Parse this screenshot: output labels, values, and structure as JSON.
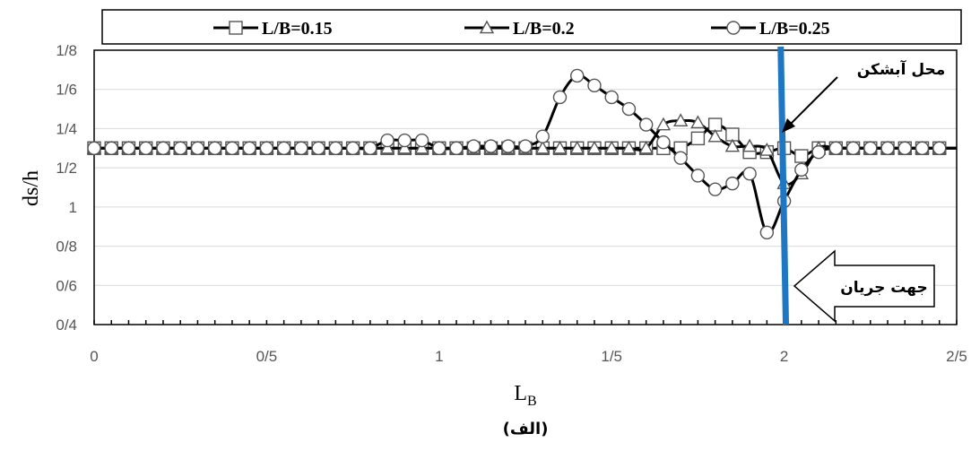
{
  "chart_data": {
    "type": "line",
    "x_tick_labels": [
      "0",
      "0/5",
      "1",
      "1/5",
      "2",
      "2/5"
    ],
    "x_tick_values": [
      0,
      0.5,
      1,
      1.5,
      2,
      2.5
    ],
    "y_tick_labels": [
      "0/4",
      "0/6",
      "0/8",
      "1",
      "1/2",
      "1/4",
      "1/6",
      "1/8"
    ],
    "y_tick_values": [
      0.4,
      0.6,
      0.8,
      1.0,
      1.2,
      1.4,
      1.6,
      1.8
    ],
    "xlim": [
      0,
      2.5
    ],
    "ylim": [
      0.4,
      1.8
    ],
    "xlabel_main": "L",
    "xlabel_sub": "B",
    "ylabel": "ds/h",
    "caption": "(الف)",
    "grid": "horizontal",
    "legend_position": "top",
    "series": [
      {
        "name": "L/B=0.15",
        "marker": "square",
        "x": [
          0,
          0.05,
          0.1,
          0.15,
          0.2,
          0.25,
          0.3,
          0.35,
          0.4,
          0.45,
          0.5,
          0.55,
          0.6,
          0.65,
          0.7,
          0.75,
          0.8,
          0.85,
          0.9,
          0.95,
          1.0,
          1.05,
          1.1,
          1.15,
          1.2,
          1.25,
          1.3,
          1.35,
          1.4,
          1.45,
          1.5,
          1.55,
          1.6,
          1.65,
          1.7,
          1.75,
          1.8,
          1.85,
          1.9,
          1.95,
          2.0,
          2.05,
          2.1,
          2.15,
          2.2,
          2.25,
          2.3,
          2.35,
          2.4,
          2.45
        ],
        "y": [
          1.3,
          1.3,
          1.3,
          1.3,
          1.3,
          1.3,
          1.3,
          1.3,
          1.3,
          1.3,
          1.3,
          1.3,
          1.3,
          1.3,
          1.3,
          1.3,
          1.3,
          1.3,
          1.3,
          1.3,
          1.3,
          1.3,
          1.3,
          1.3,
          1.3,
          1.3,
          1.3,
          1.3,
          1.3,
          1.3,
          1.3,
          1.3,
          1.3,
          1.3,
          1.3,
          1.35,
          1.42,
          1.37,
          1.28,
          1.28,
          1.3,
          1.26,
          1.3,
          1.3,
          1.3,
          1.3,
          1.3,
          1.3,
          1.3,
          1.3
        ]
      },
      {
        "name": "L/B=0.2",
        "marker": "triangle",
        "x": [
          0,
          0.05,
          0.1,
          0.15,
          0.2,
          0.25,
          0.3,
          0.35,
          0.4,
          0.45,
          0.5,
          0.55,
          0.6,
          0.65,
          0.7,
          0.75,
          0.8,
          0.85,
          0.9,
          0.95,
          1.0,
          1.05,
          1.1,
          1.15,
          1.2,
          1.25,
          1.3,
          1.35,
          1.4,
          1.45,
          1.5,
          1.55,
          1.6,
          1.65,
          1.7,
          1.75,
          1.8,
          1.85,
          1.9,
          1.95,
          2.0,
          2.05,
          2.1,
          2.15,
          2.2,
          2.25,
          2.3,
          2.35,
          2.4,
          2.45
        ],
        "y": [
          1.3,
          1.3,
          1.3,
          1.3,
          1.3,
          1.3,
          1.3,
          1.3,
          1.3,
          1.3,
          1.3,
          1.3,
          1.3,
          1.3,
          1.3,
          1.3,
          1.3,
          1.3,
          1.3,
          1.3,
          1.3,
          1.3,
          1.3,
          1.3,
          1.3,
          1.3,
          1.3,
          1.3,
          1.3,
          1.3,
          1.3,
          1.3,
          1.3,
          1.42,
          1.44,
          1.43,
          1.36,
          1.31,
          1.31,
          1.29,
          1.12,
          1.17,
          1.3,
          1.3,
          1.3,
          1.3,
          1.3,
          1.3,
          1.3,
          1.3
        ]
      },
      {
        "name": "L/B=0.25",
        "marker": "circle",
        "x": [
          0,
          0.05,
          0.1,
          0.15,
          0.2,
          0.25,
          0.3,
          0.35,
          0.4,
          0.45,
          0.5,
          0.55,
          0.6,
          0.65,
          0.7,
          0.75,
          0.8,
          0.85,
          0.9,
          0.95,
          1.0,
          1.05,
          1.1,
          1.15,
          1.2,
          1.25,
          1.3,
          1.35,
          1.4,
          1.45,
          1.5,
          1.55,
          1.6,
          1.65,
          1.7,
          1.75,
          1.8,
          1.85,
          1.9,
          1.95,
          2.0,
          2.05,
          2.1,
          2.15,
          2.2,
          2.25,
          2.3,
          2.35,
          2.4,
          2.45
        ],
        "y": [
          1.3,
          1.3,
          1.3,
          1.3,
          1.3,
          1.3,
          1.3,
          1.3,
          1.3,
          1.3,
          1.3,
          1.3,
          1.3,
          1.3,
          1.3,
          1.3,
          1.3,
          1.34,
          1.34,
          1.34,
          1.3,
          1.3,
          1.31,
          1.31,
          1.31,
          1.31,
          1.36,
          1.56,
          1.67,
          1.62,
          1.56,
          1.5,
          1.42,
          1.33,
          1.25,
          1.16,
          1.09,
          1.12,
          1.17,
          0.87,
          1.03,
          1.19,
          1.28,
          1.3,
          1.3,
          1.3,
          1.3,
          1.3,
          1.3,
          1.3
        ]
      }
    ],
    "annotations": {
      "waterfall_label": "محل آبشکن",
      "flow_label": "جهت جریان",
      "waterfall_line_x_top": 1.99,
      "waterfall_line_x_bottom": 2.005,
      "waterfall_color": "#1f77c4"
    }
  }
}
